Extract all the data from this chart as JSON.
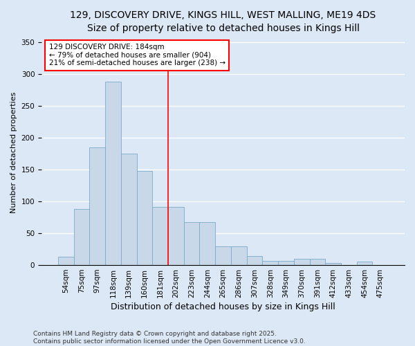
{
  "title_line1": "129, DISCOVERY DRIVE, KINGS HILL, WEST MALLING, ME19 4DS",
  "title_line2": "Size of property relative to detached houses in Kings Hill",
  "xlabel": "Distribution of detached houses by size in Kings Hill",
  "ylabel": "Number of detached properties",
  "footer_line1": "Contains HM Land Registry data © Crown copyright and database right 2025.",
  "footer_line2": "Contains public sector information licensed under the Open Government Licence v3.0.",
  "categories": [
    "54sqm",
    "75sqm",
    "97sqm",
    "118sqm",
    "139sqm",
    "160sqm",
    "181sqm",
    "202sqm",
    "223sqm",
    "244sqm",
    "265sqm",
    "286sqm",
    "307sqm",
    "328sqm",
    "349sqm",
    "370sqm",
    "391sqm",
    "412sqm",
    "433sqm",
    "454sqm",
    "475sqm"
  ],
  "values": [
    13,
    88,
    185,
    288,
    175,
    148,
    91,
    91,
    68,
    68,
    29,
    29,
    14,
    7,
    7,
    10,
    10,
    3,
    0,
    5,
    0
  ],
  "bar_color": "#c8d8e8",
  "bar_edge_color": "#7aaac8",
  "vline_x": 6.5,
  "vline_color": "red",
  "annotation_text": "129 DISCOVERY DRIVE: 184sqm\n← 79% of detached houses are smaller (904)\n21% of semi-detached houses are larger (238) →",
  "annotation_box_color": "white",
  "annotation_box_edge_color": "red",
  "ylim": [
    0,
    355
  ],
  "yticks": [
    0,
    50,
    100,
    150,
    200,
    250,
    300,
    350
  ],
  "background_color": "#dce8f5",
  "plot_background": "#dce8f5",
  "grid_color": "white",
  "title_fontsize": 10,
  "subtitle_fontsize": 9,
  "ylabel_fontsize": 8,
  "xlabel_fontsize": 9,
  "tick_fontsize": 7.5,
  "footer_fontsize": 6.5
}
